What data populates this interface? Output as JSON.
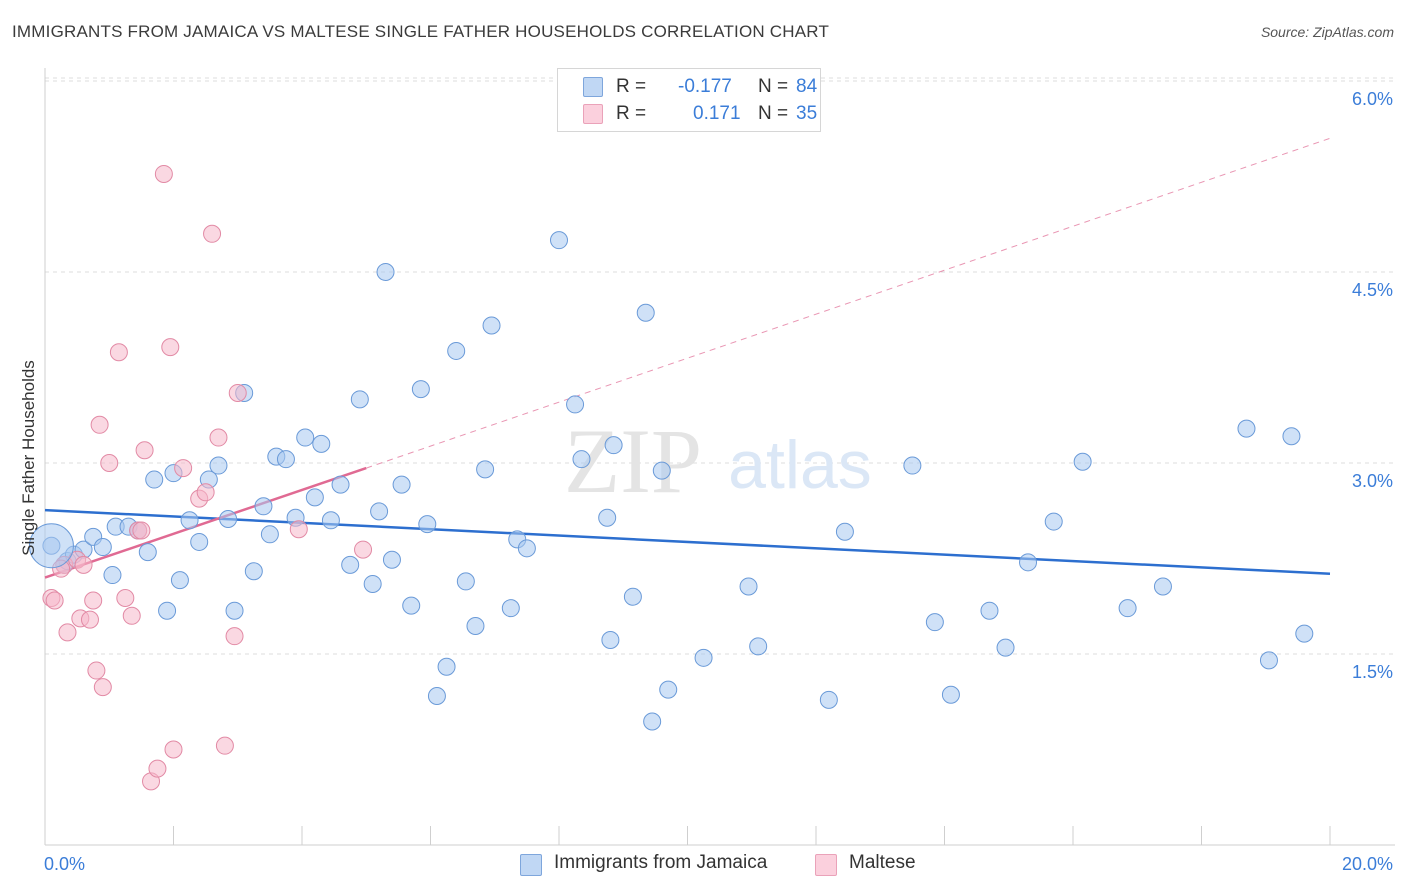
{
  "header": {
    "title": "IMMIGRANTS FROM JAMAICA VS MALTESE SINGLE FATHER HOUSEHOLDS CORRELATION CHART",
    "source": "Source: ZipAtlas.com"
  },
  "watermark": {
    "zip": "ZIP",
    "atlas": "atlas"
  },
  "legend_top": [
    {
      "r_label": "R =",
      "r_value": "-0.177",
      "n_label": "N =",
      "n_value": "84",
      "color": "#a8c8f0"
    },
    {
      "r_label": "R =",
      "r_value": "0.171",
      "n_label": "N =",
      "n_value": "35",
      "color": "#f5b8cb"
    }
  ],
  "legend_bottom": [
    {
      "label": "Immigrants from Jamaica",
      "color": "#a8c8f0"
    },
    {
      "label": "Maltese",
      "color": "#f5b8cb"
    }
  ],
  "chart_data": {
    "type": "scatter",
    "title": "IMMIGRANTS FROM JAMAICA VS MALTESE SINGLE FATHER HOUSEHOLDS CORRELATION CHART",
    "xlabel": "",
    "ylabel": "Single Father Households",
    "xlim": [
      0,
      20
    ],
    "ylim": [
      0,
      6.3
    ],
    "x_tick_labels": [
      "0.0%",
      "20.0%"
    ],
    "y_ticks": [
      1.5,
      3.0,
      4.5,
      6.0
    ],
    "y_tick_labels": [
      "1.5%",
      "3.0%",
      "4.5%",
      "6.0%"
    ],
    "grid": "horizontal dashed",
    "legend_placement": "top-center and bottom",
    "series": [
      {
        "name": "Immigrants from Jamaica",
        "color": "#a8c8f0",
        "edge_color": "#6a9ad8",
        "line_color": "#2d6fcf",
        "trend": {
          "x": [
            0,
            20
          ],
          "y": [
            2.63,
            2.13
          ]
        },
        "points": [
          [
            0.1,
            2.35
          ],
          [
            0.3,
            2.2
          ],
          [
            0.35,
            2.23
          ],
          [
            0.45,
            2.28
          ],
          [
            0.6,
            2.32
          ],
          [
            0.75,
            2.42
          ],
          [
            0.9,
            2.34
          ],
          [
            1.05,
            2.12
          ],
          [
            1.1,
            2.5
          ],
          [
            1.3,
            2.5
          ],
          [
            1.45,
            2.47
          ],
          [
            1.6,
            2.3
          ],
          [
            1.7,
            2.87
          ],
          [
            1.9,
            1.84
          ],
          [
            2.0,
            2.92
          ],
          [
            2.1,
            2.08
          ],
          [
            2.25,
            2.55
          ],
          [
            2.4,
            2.38
          ],
          [
            2.55,
            2.87
          ],
          [
            2.7,
            2.98
          ],
          [
            2.85,
            2.56
          ],
          [
            2.95,
            1.84
          ],
          [
            3.1,
            3.55
          ],
          [
            3.25,
            2.15
          ],
          [
            3.4,
            2.66
          ],
          [
            3.5,
            2.44
          ],
          [
            3.6,
            3.05
          ],
          [
            3.75,
            3.03
          ],
          [
            3.9,
            2.57
          ],
          [
            4.05,
            3.2
          ],
          [
            4.2,
            2.73
          ],
          [
            4.3,
            3.15
          ],
          [
            4.45,
            2.55
          ],
          [
            4.6,
            2.83
          ],
          [
            4.75,
            2.2
          ],
          [
            4.9,
            3.5
          ],
          [
            5.1,
            2.05
          ],
          [
            5.2,
            2.62
          ],
          [
            5.3,
            4.5
          ],
          [
            5.4,
            2.24
          ],
          [
            5.55,
            2.83
          ],
          [
            5.7,
            1.88
          ],
          [
            5.85,
            3.58
          ],
          [
            5.95,
            2.52
          ],
          [
            6.1,
            1.17
          ],
          [
            6.25,
            1.4
          ],
          [
            6.4,
            3.88
          ],
          [
            6.55,
            2.07
          ],
          [
            6.7,
            1.72
          ],
          [
            6.85,
            2.95
          ],
          [
            6.95,
            4.08
          ],
          [
            7.25,
            1.86
          ],
          [
            7.35,
            2.4
          ],
          [
            7.5,
            2.33
          ],
          [
            8.0,
            4.75
          ],
          [
            8.25,
            3.46
          ],
          [
            8.35,
            3.03
          ],
          [
            8.75,
            2.57
          ],
          [
            8.85,
            3.14
          ],
          [
            8.8,
            1.61
          ],
          [
            9.15,
            1.95
          ],
          [
            9.45,
            0.97
          ],
          [
            9.35,
            4.18
          ],
          [
            9.6,
            2.94
          ],
          [
            9.7,
            1.22
          ],
          [
            10.25,
            1.47
          ],
          [
            10.95,
            2.03
          ],
          [
            11.1,
            1.56
          ],
          [
            12.2,
            1.14
          ],
          [
            12.45,
            2.46
          ],
          [
            13.5,
            2.98
          ],
          [
            13.85,
            1.75
          ],
          [
            14.1,
            1.18
          ],
          [
            14.7,
            1.84
          ],
          [
            14.95,
            1.55
          ],
          [
            15.3,
            2.22
          ],
          [
            15.7,
            2.54
          ],
          [
            16.15,
            3.01
          ],
          [
            16.85,
            1.86
          ],
          [
            17.4,
            2.03
          ],
          [
            18.7,
            3.27
          ],
          [
            19.05,
            1.45
          ],
          [
            19.4,
            3.21
          ],
          [
            19.6,
            1.66
          ]
        ]
      },
      {
        "name": "Maltese",
        "color": "#f5b8cb",
        "edge_color": "#e28aa5",
        "line_color": "#e06a93",
        "trend": {
          "x": [
            0,
            5.0
          ],
          "y": [
            2.1,
            2.96
          ],
          "extended_to": [
            20,
            5.55
          ]
        },
        "points": [
          [
            0.1,
            1.94
          ],
          [
            0.15,
            1.92
          ],
          [
            0.3,
            2.2
          ],
          [
            0.35,
            1.67
          ],
          [
            0.5,
            2.24
          ],
          [
            0.55,
            1.78
          ],
          [
            0.6,
            2.2
          ],
          [
            0.7,
            1.77
          ],
          [
            0.75,
            1.92
          ],
          [
            0.8,
            1.37
          ],
          [
            0.85,
            3.3
          ],
          [
            0.9,
            1.24
          ],
          [
            1.0,
            3.0
          ],
          [
            1.15,
            3.87
          ],
          [
            1.25,
            1.94
          ],
          [
            1.35,
            1.8
          ],
          [
            1.45,
            2.47
          ],
          [
            1.5,
            2.47
          ],
          [
            1.55,
            3.1
          ],
          [
            1.65,
            0.5
          ],
          [
            1.75,
            0.6
          ],
          [
            1.85,
            5.27
          ],
          [
            1.95,
            3.91
          ],
          [
            2.0,
            0.75
          ],
          [
            2.15,
            2.96
          ],
          [
            2.4,
            2.72
          ],
          [
            2.5,
            2.77
          ],
          [
            2.6,
            4.8
          ],
          [
            2.7,
            3.2
          ],
          [
            2.8,
            0.78
          ],
          [
            2.95,
            1.64
          ],
          [
            3.0,
            3.55
          ],
          [
            3.95,
            2.48
          ],
          [
            4.95,
            2.32
          ],
          [
            0.25,
            2.17
          ]
        ]
      }
    ]
  }
}
